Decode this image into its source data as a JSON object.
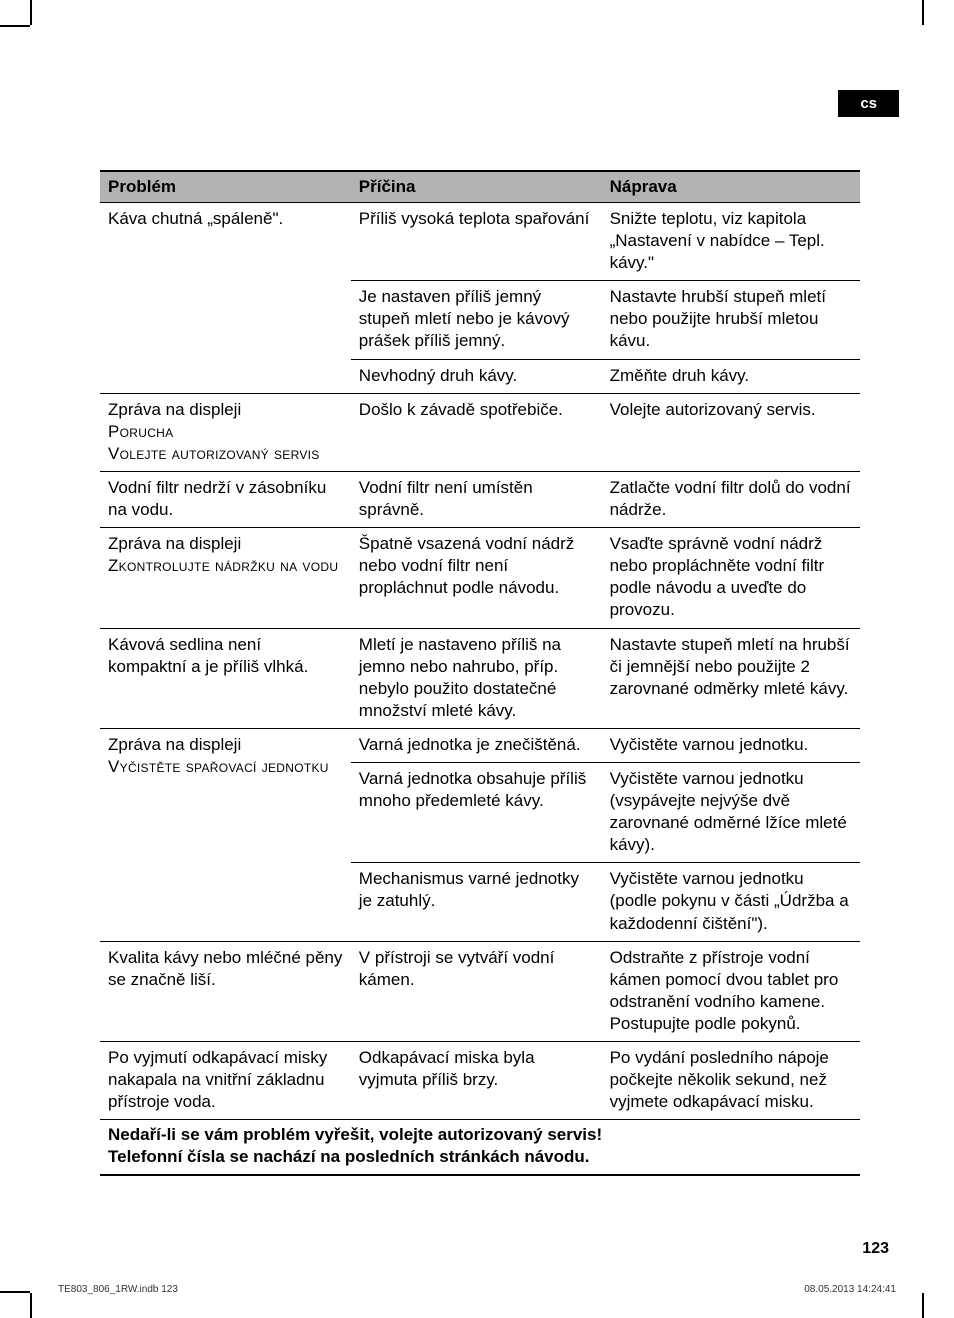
{
  "lang_badge": "cs",
  "page_number": "123",
  "footer_file": "TE803_806_1RW.indb   123",
  "footer_date": "08.05.2013   14:24:41",
  "table": {
    "headers": {
      "c1": "Problém",
      "c2": "Příčina",
      "c3": "Náprava"
    },
    "rows": [
      {
        "p": "Káva chutná „spáleně\".",
        "c": "Příliš vysoká teplota spařování",
        "n": "Snižte teplotu, viz kapitola „Nastavení v nabídce – Tepl. kávy.\"",
        "merge_p": 3
      },
      {
        "c": "Je nastaven příliš jemný stupeň mletí nebo je kávový prášek příliš jemný.",
        "n": "Nastavte hrubší stupeň mletí nebo použijte hrubší mletou kávu."
      },
      {
        "c": "Nevhodný druh kávy.",
        "n": "Změňte druh kávy."
      },
      {
        "p_html": "Zpráva na displeji<br><span class=\"sc\">Porucha</span><br><span class=\"sc\">Volejte autorizovaný servis</span>",
        "c": "Došlo k závadě spotřebiče.",
        "n": "Volejte autorizovaný servis."
      },
      {
        "p": "Vodní filtr nedrží v zásobníku na vodu.",
        "c": "Vodní filtr není umístěn správně.",
        "n": "Zatlačte vodní filtr dolů do vodní nádrže."
      },
      {
        "p_html": "Zpráva na displeji<br><span class=\"sc\">Zkontrolujte nádržku na vodu</span>",
        "c": "Špatně vsazená vodní nádrž nebo vodní filtr není propláchnut podle návodu.",
        "n": "Vsaďte správně vodní nádrž nebo propláchněte vodní filtr podle návodu a uveďte do provozu."
      },
      {
        "p": "Kávová sedlina není kompaktní a je příliš vlhká.",
        "c": "Mletí je nastaveno příliš na jemno nebo nahrubo, příp. nebylo použito dostatečné množství mleté kávy.",
        "n": "Nastavte stupeň mletí na hrubší či jemnější nebo použijte 2 zarovnané odměrky mleté kávy."
      },
      {
        "p_html": "Zpráva na displeji<br><span class=\"sc\">Vyčistěte spařovací jednotku</span>",
        "c": "Varná jednotka je znečištěná.",
        "n": "Vyčistěte varnou jednotku.",
        "merge_p": 3
      },
      {
        "c": "Varná jednotka obsahuje příliš mnoho předemleté kávy.",
        "n": "Vyčistěte varnou jednotku (vsypávejte nejvýše dvě zarovnané odměrné lžíce mleté kávy)."
      },
      {
        "c": "Mechanismus varné jednotky je zatuhlý.",
        "n": "Vyčistěte varnou jednotku (podle pokynu v části „Údržba a každodenní čištění\")."
      },
      {
        "p": "Kvalita kávy nebo mléčné pěny se značně liší.",
        "c": "V přístroji se vytváří vodní kámen.",
        "n": "Odstraňte z přístroje vodní kámen pomocí dvou tablet pro odstranění vodního kamene. Postupujte podle pokynů."
      },
      {
        "p": "Po vyjmutí odkapávací misky nakapala na vnitřní základnu přístroje voda.",
        "c": "Odkapávací miska byla vyjmuta příliš brzy.",
        "n": "Po vydání posledního nápoje počkejte několik sekund, než vyjmete odkapávací misku."
      }
    ],
    "footer_line1": "Nedaří-li se vám problém vyřešit, volejte autorizovaný servis!",
    "footer_line2": "Telefonní čísla se nachází na posledních stránkách návodu."
  }
}
